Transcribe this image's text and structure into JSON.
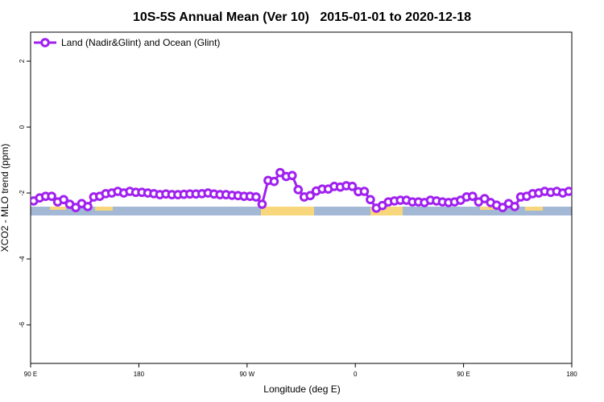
{
  "chart_data": {
    "type": "line",
    "title": "10S-5S Annual Mean (Ver 10)   2015-01-01 to 2020-12-18",
    "xlabel": "Longitude (deg E)",
    "ylabel": "XCO2 - MLO trend (ppm)",
    "x": [
      92.5,
      97.5,
      102.5,
      107.5,
      112.5,
      117.5,
      122.5,
      127.5,
      132.5,
      137.5,
      142.5,
      147.5,
      152.5,
      157.5,
      162.5,
      167.5,
      172.5,
      177.5,
      182.5,
      187.5,
      192.5,
      197.5,
      202.5,
      207.5,
      212.5,
      217.5,
      222.5,
      227.5,
      232.5,
      237.5,
      242.5,
      247.5,
      252.5,
      257.5,
      262.5,
      267.5,
      272.5,
      277.5,
      282.5,
      287.5,
      292.5,
      297.5,
      302.5,
      307.5,
      312.5,
      317.5,
      322.5,
      327.5,
      332.5,
      337.5,
      342.5,
      347.5,
      352.5,
      357.5,
      362.5,
      367.5,
      372.5,
      377.5,
      382.5,
      387.5,
      392.5,
      397.5,
      402.5,
      407.5,
      412.5,
      417.5,
      422.5,
      427.5,
      432.5,
      437.5,
      442.5,
      447.5,
      452.5,
      457.5,
      462.5,
      467.5,
      472.5,
      477.5,
      482.5,
      487.5,
      492.5,
      497.5,
      502.5,
      507.5,
      512.5,
      517.5,
      522.5,
      527.5,
      532.5,
      537.5
    ],
    "series": [
      {
        "name": "Land (Nadir&Glint) and Ocean (Glint)",
        "color": "#a020f0",
        "values": [
          -2.24,
          -2.15,
          -2.1,
          -2.1,
          -2.27,
          -2.2,
          -2.34,
          -2.44,
          -2.32,
          -2.41,
          -2.12,
          -2.1,
          -2.02,
          -2.0,
          -1.95,
          -2.0,
          -1.95,
          -1.98,
          -1.98,
          -2.0,
          -2.02,
          -2.05,
          -2.03,
          -2.05,
          -2.05,
          -2.04,
          -2.03,
          -2.03,
          -2.02,
          -2.0,
          -2.03,
          -2.05,
          -2.05,
          -2.07,
          -2.08,
          -2.1,
          -2.1,
          -2.12,
          -2.34,
          -1.62,
          -1.65,
          -1.38,
          -1.5,
          -1.47,
          -1.9,
          -2.12,
          -2.08,
          -1.94,
          -1.88,
          -1.88,
          -1.8,
          -1.82,
          -1.78,
          -1.8,
          -1.96,
          -1.95,
          -2.2,
          -2.46,
          -2.38,
          -2.27,
          -2.24,
          -2.22,
          -2.22,
          -2.27,
          -2.27,
          -2.29,
          -2.22,
          -2.24,
          -2.27,
          -2.29,
          -2.27,
          -2.22,
          -2.12,
          -2.1,
          -2.27,
          -2.17,
          -2.29,
          -2.37,
          -2.44,
          -2.32,
          -2.41,
          -2.12,
          -2.1,
          -2.02,
          -2.0,
          -1.95,
          -1.98,
          -1.95,
          -2.0,
          -1.95
        ]
      }
    ],
    "xlim": [
      90,
      540
    ],
    "xticks": [
      {
        "value": 90,
        "label": "90 E"
      },
      180,
      {
        "value": 270,
        "label": "90 W"
      },
      {
        "value": 360,
        "label": "0"
      },
      {
        "value": 450,
        "label": "90 E"
      },
      {
        "value": 540,
        "label": "180"
      }
    ],
    "ylim": [
      -7.17,
      2.88
    ],
    "yticks": [
      2,
      0,
      -2,
      -4,
      -6
    ],
    "legend": "upper left"
  }
}
